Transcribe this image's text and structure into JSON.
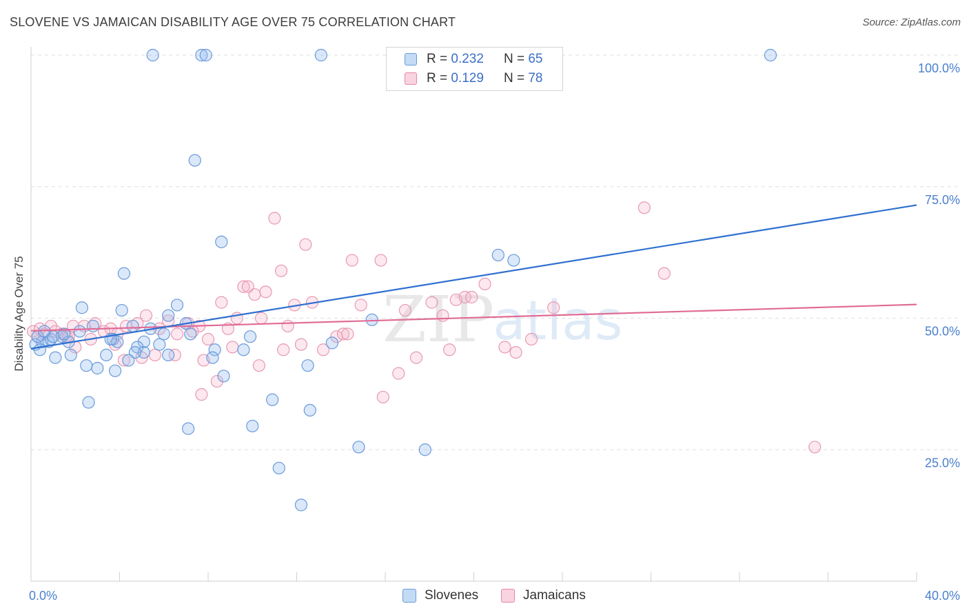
{
  "header": {
    "title": "SLOVENE VS JAMAICAN DISABILITY AGE OVER 75 CORRELATION CHART",
    "source": "Source: ZipAtlas.com"
  },
  "stats": [
    {
      "r_label": "R =",
      "r_value": "0.232",
      "n_label": "N =",
      "n_value": "65",
      "color": "#a9c8f0",
      "border": "#6a9ad8"
    },
    {
      "r_label": "R =",
      "r_value": "0.129",
      "n_label": "N =",
      "n_value": "78",
      "color": "#f7bfcf",
      "border": "#e487a3"
    }
  ],
  "legend": {
    "slovenes": "Slovenes",
    "jamaicans": "Jamaicans"
  },
  "watermark": {
    "zip": "ZIP",
    "atlas": "atlas"
  },
  "colors": {
    "blue_fill": "rgba(150,190,240,0.35)",
    "blue_stroke": "#6a9ad8",
    "blue_line": "#2e6fd0",
    "pink_fill": "rgba(245,180,200,0.30)",
    "pink_stroke": "#e799b3",
    "pink_line": "#e06b96",
    "tick_label": "#4a7fcf"
  },
  "chart_data": {
    "type": "scatter",
    "title": "SLOVENE VS JAMAICAN DISABILITY AGE OVER 75 CORRELATION CHART",
    "xlabel": "",
    "ylabel": "Disability Age Over 75",
    "xlim": [
      0,
      40
    ],
    "ylim": [
      0,
      100
    ],
    "x_tick_labels": [
      "0.0%",
      "40.0%"
    ],
    "y_ticks": [
      25,
      50,
      75,
      100
    ],
    "y_tick_labels": [
      "25.0%",
      "50.0%",
      "75.0%",
      "100.0%"
    ],
    "grid": true,
    "legend_position": "bottom",
    "series": [
      {
        "name": "Slovenes",
        "r": 0.232,
        "n": 65,
        "trend": {
          "x": [
            0,
            40
          ],
          "y": [
            44.2,
            71.5
          ]
        },
        "points": [
          [
            5.5,
            100
          ],
          [
            7.7,
            100
          ],
          [
            7.9,
            100
          ],
          [
            13.1,
            100
          ],
          [
            33.4,
            100
          ],
          [
            7.4,
            80
          ],
          [
            8.6,
            64.5
          ],
          [
            21.1,
            62
          ],
          [
            21.8,
            61
          ],
          [
            4.2,
            58.5
          ],
          [
            2.3,
            52
          ],
          [
            6.6,
            52.5
          ],
          [
            4.1,
            51.5
          ],
          [
            6.2,
            50.5
          ],
          [
            15.4,
            49.7
          ],
          [
            7.0,
            49
          ],
          [
            2.8,
            48.5
          ],
          [
            5.4,
            48
          ],
          [
            7.2,
            47
          ],
          [
            1.4,
            46.5
          ],
          [
            3.7,
            46
          ],
          [
            0.5,
            45.5
          ],
          [
            1.7,
            45.5
          ],
          [
            0.2,
            45
          ],
          [
            0.8,
            45.5
          ],
          [
            3.9,
            45.5
          ],
          [
            5.1,
            45.5
          ],
          [
            0.4,
            44
          ],
          [
            4.8,
            44.5
          ],
          [
            9.9,
            46.5
          ],
          [
            13.6,
            45.3
          ],
          [
            5.1,
            43.5
          ],
          [
            4.7,
            43.5
          ],
          [
            9.6,
            44
          ],
          [
            8.3,
            44
          ],
          [
            1.1,
            42.5
          ],
          [
            1.8,
            43
          ],
          [
            3.4,
            43
          ],
          [
            6.2,
            43
          ],
          [
            8.2,
            42.5
          ],
          [
            12.5,
            41
          ],
          [
            2.5,
            41
          ],
          [
            3.0,
            40.5
          ],
          [
            3.8,
            40
          ],
          [
            4.4,
            42
          ],
          [
            8.7,
            39
          ],
          [
            2.6,
            34
          ],
          [
            10.9,
            34.5
          ],
          [
            12.6,
            32.5
          ],
          [
            10.0,
            29.5
          ],
          [
            7.1,
            29
          ],
          [
            14.8,
            25.5
          ],
          [
            17.8,
            25
          ],
          [
            11.2,
            21.5
          ],
          [
            12.2,
            14.5
          ],
          [
            0.3,
            46.5
          ],
          [
            1.5,
            47
          ],
          [
            2.2,
            47.5
          ],
          [
            3.6,
            46
          ],
          [
            6.0,
            47
          ],
          [
            0.9,
            46
          ],
          [
            4.6,
            48.5
          ],
          [
            5.8,
            45
          ],
          [
            1.0,
            46.5
          ],
          [
            0.6,
            47.5
          ]
        ]
      },
      {
        "name": "Jamaicans",
        "r": 0.129,
        "n": 78,
        "trend": {
          "x": [
            0,
            40
          ],
          "y": [
            47.6,
            52.6
          ]
        },
        "points": [
          [
            0.1,
            47.5
          ],
          [
            0.4,
            48
          ],
          [
            0.6,
            47
          ],
          [
            0.9,
            48.5
          ],
          [
            1.1,
            47.5
          ],
          [
            1.4,
            47
          ],
          [
            1.7,
            46.5
          ],
          [
            1.9,
            48.5
          ],
          [
            2.4,
            48.5
          ],
          [
            2.9,
            49
          ],
          [
            3.3,
            47.5
          ],
          [
            3.6,
            48
          ],
          [
            3.9,
            47
          ],
          [
            4.3,
            48.5
          ],
          [
            4.8,
            49
          ],
          [
            5.2,
            50.5
          ],
          [
            5.8,
            48
          ],
          [
            6.2,
            49.5
          ],
          [
            6.6,
            47
          ],
          [
            7.1,
            49
          ],
          [
            7.6,
            48.5
          ],
          [
            8.0,
            46
          ],
          [
            8.6,
            53
          ],
          [
            8.9,
            48
          ],
          [
            9.3,
            50
          ],
          [
            9.6,
            56
          ],
          [
            9.8,
            56
          ],
          [
            10.1,
            54.5
          ],
          [
            10.4,
            50
          ],
          [
            10.6,
            55
          ],
          [
            11.0,
            69
          ],
          [
            11.3,
            59
          ],
          [
            11.6,
            48.5
          ],
          [
            11.9,
            52.5
          ],
          [
            12.4,
            64
          ],
          [
            12.7,
            53
          ],
          [
            13.8,
            46.5
          ],
          [
            14.1,
            47
          ],
          [
            14.5,
            61
          ],
          [
            14.9,
            52.5
          ],
          [
            15.8,
            61
          ],
          [
            16.6,
            39.5
          ],
          [
            16.9,
            51.5
          ],
          [
            17.4,
            42.5
          ],
          [
            18.1,
            53
          ],
          [
            18.6,
            50.5
          ],
          [
            19.2,
            53.5
          ],
          [
            19.6,
            54
          ],
          [
            19.9,
            54
          ],
          [
            20.5,
            56.5
          ],
          [
            21.4,
            44.5
          ],
          [
            21.9,
            43.5
          ],
          [
            22.6,
            46
          ],
          [
            23.6,
            52
          ],
          [
            27.7,
            71
          ],
          [
            28.6,
            58.5
          ],
          [
            35.4,
            25.5
          ],
          [
            4.2,
            42
          ],
          [
            5.0,
            42.5
          ],
          [
            5.6,
            43
          ],
          [
            6.5,
            43
          ],
          [
            7.8,
            42
          ],
          [
            7.7,
            35.5
          ],
          [
            8.4,
            38
          ],
          [
            10.3,
            41
          ],
          [
            12.2,
            45
          ],
          [
            15.9,
            35
          ],
          [
            1.6,
            46.5
          ],
          [
            2.0,
            44.5
          ],
          [
            2.7,
            46
          ],
          [
            3.8,
            45
          ],
          [
            7.3,
            47.5
          ],
          [
            9.1,
            44.5
          ],
          [
            11.4,
            44
          ],
          [
            13.2,
            44
          ],
          [
            14.3,
            47
          ],
          [
            0.3,
            46.5
          ],
          [
            18.9,
            44
          ]
        ]
      }
    ]
  }
}
